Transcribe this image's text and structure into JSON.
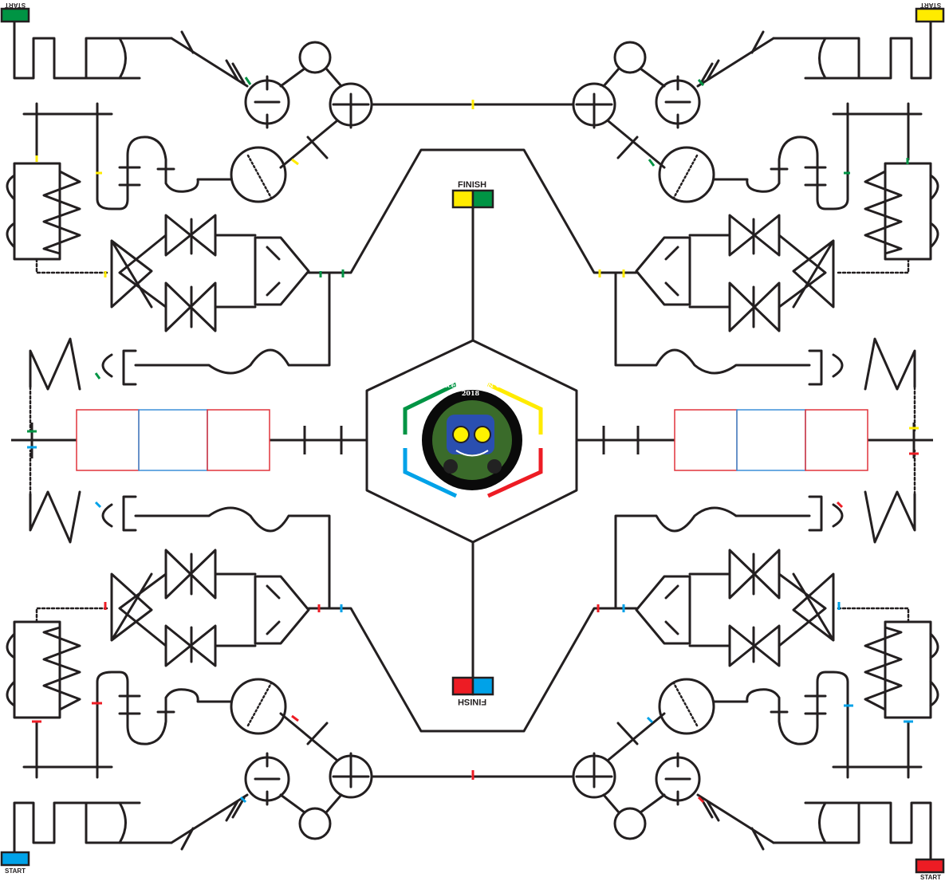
{
  "colors": {
    "line": "#231f20",
    "green": "#009444",
    "yellow": "#ffeb00",
    "blue": "#00a2e8",
    "red": "#ed1c24",
    "box_red": "#e1333b",
    "box_blue": "#3b8fd8"
  },
  "labels": {
    "finish_top": "FINISH",
    "finish_bottom": "FINISH",
    "start_tl": "START",
    "start_tr": "START",
    "start_bl": "START",
    "start_br": "START"
  },
  "logo": {
    "title": "Line Tracer Design & Contest 2018",
    "icon": "robot-car-logo-icon"
  }
}
